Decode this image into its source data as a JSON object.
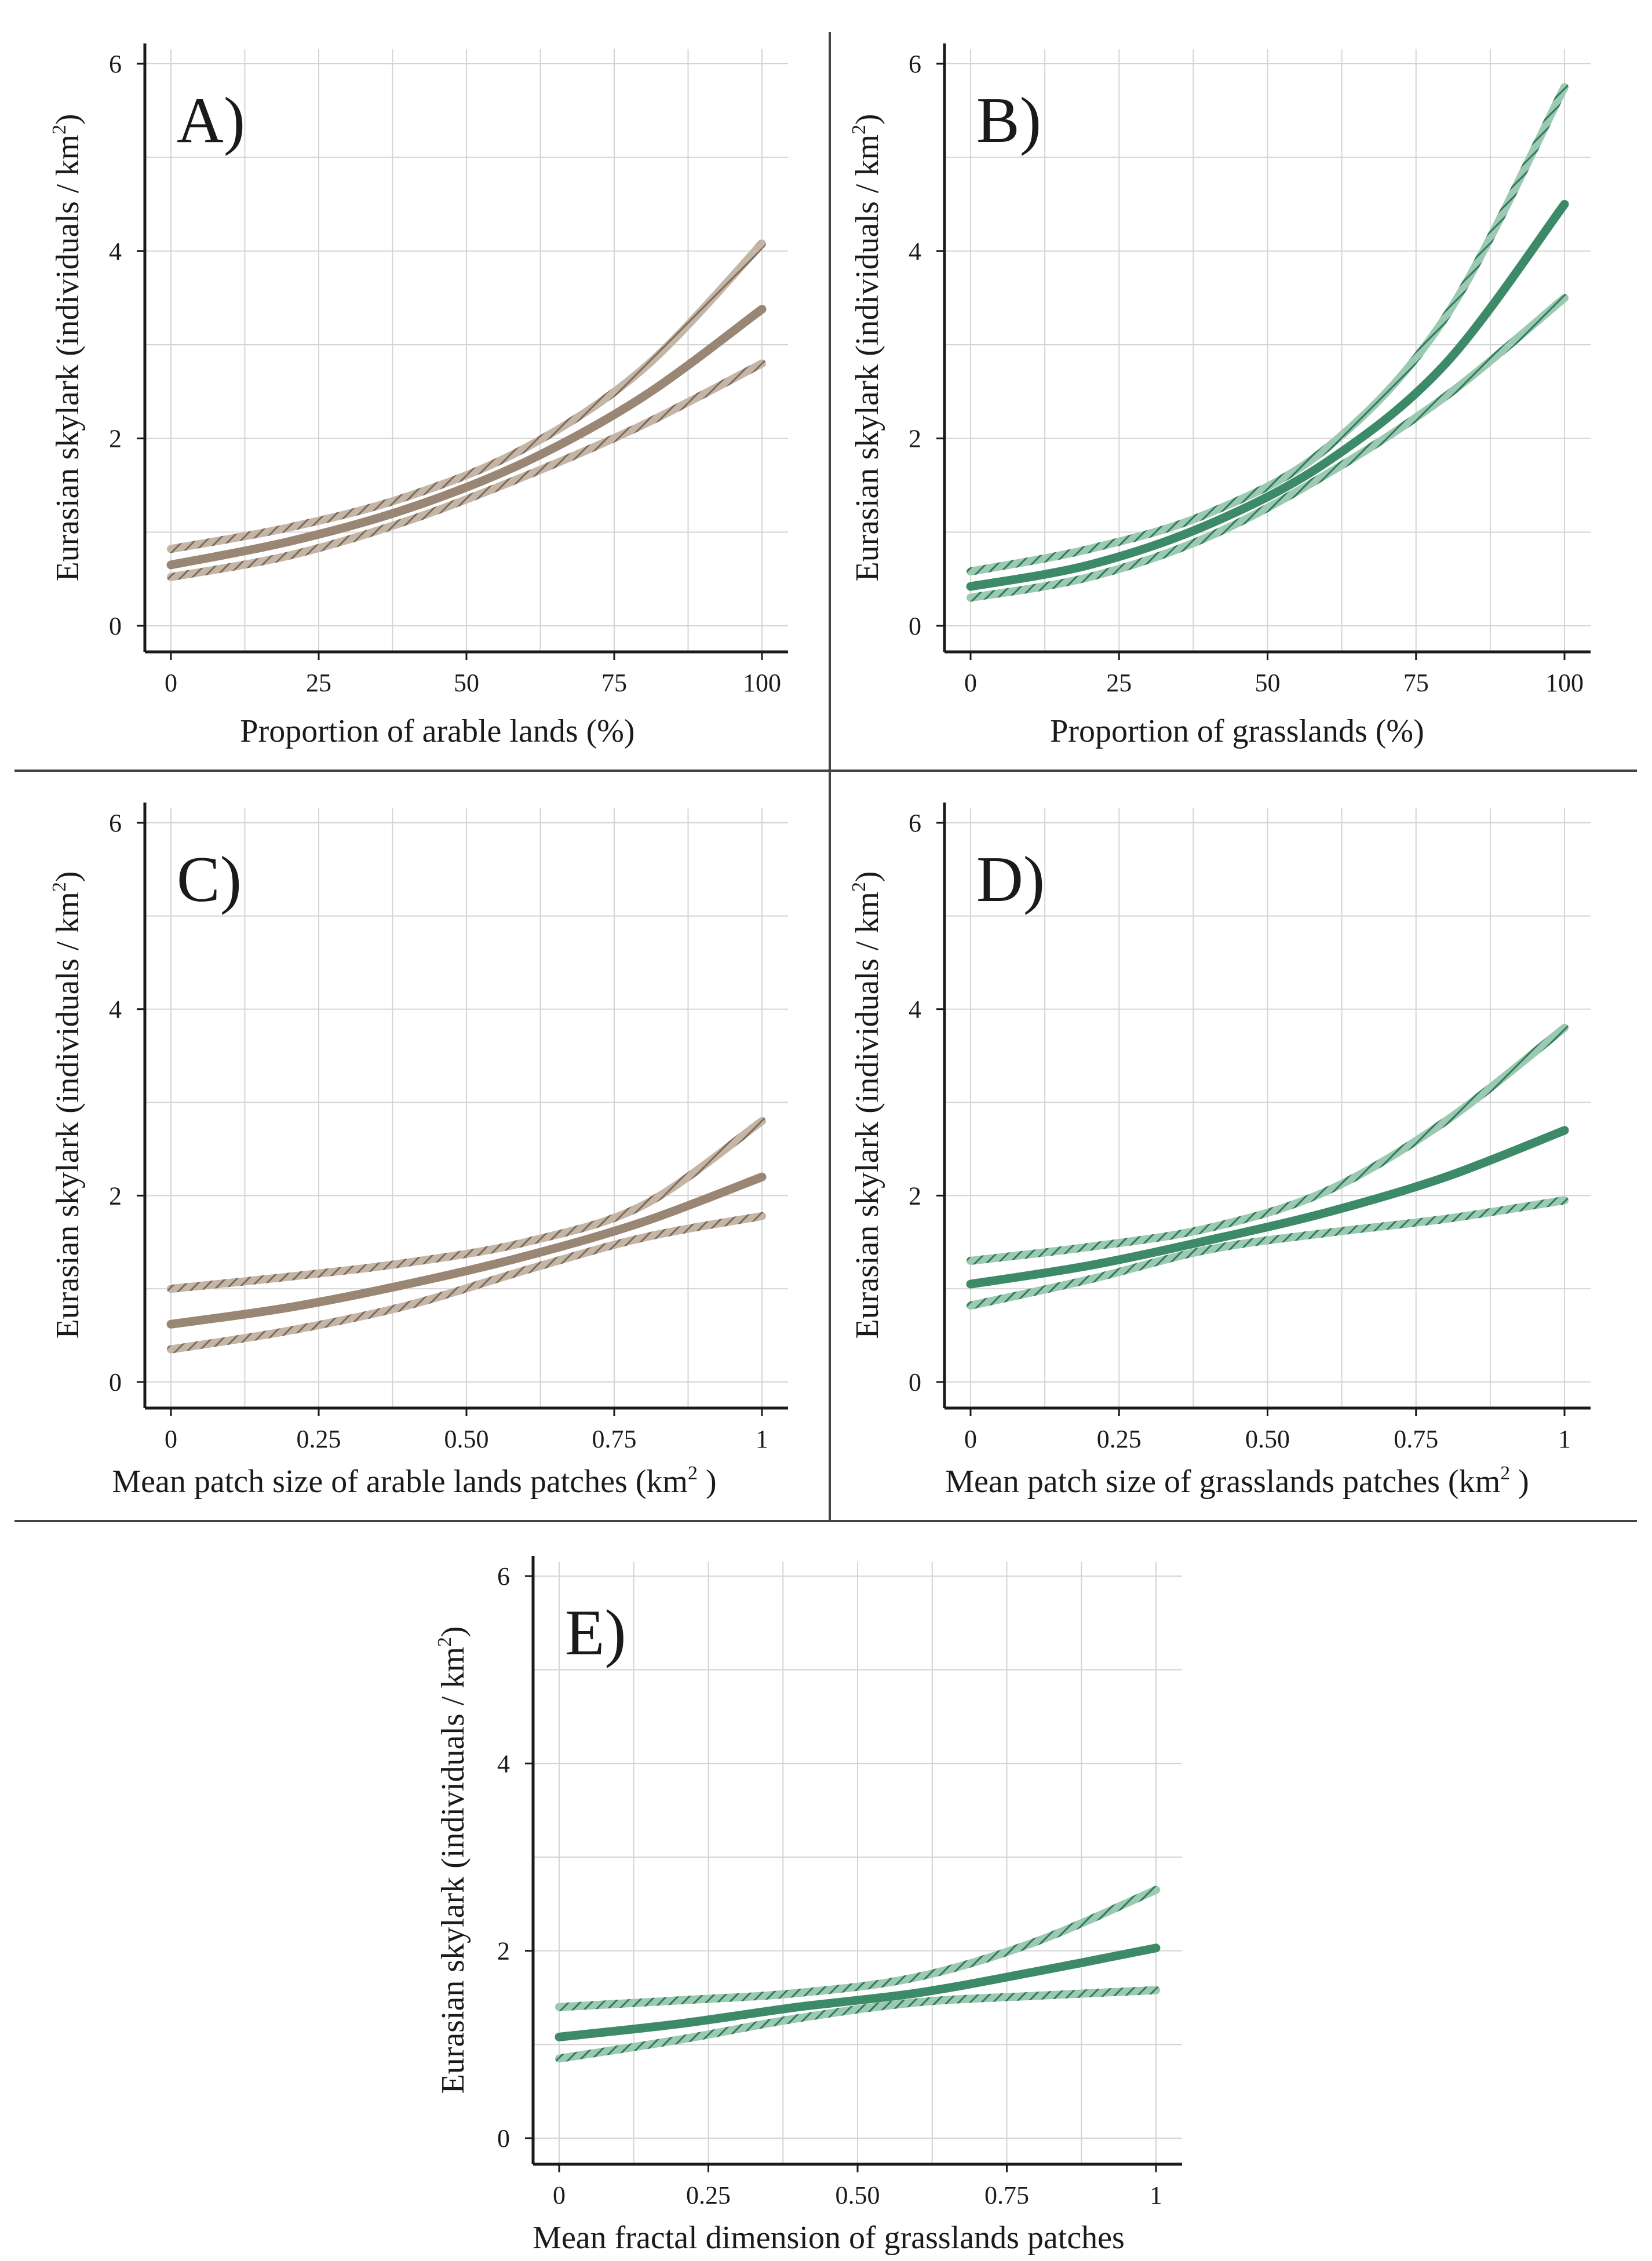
{
  "chart_data": [
    {
      "panel": "A)",
      "type": "line",
      "color": "#9a8674",
      "ylabel": "Eurasian skylark (individuals / km",
      "ylabel_sup": "2",
      "ylabel_end": ")",
      "xlabel": "Proportion of arable lands (%)",
      "xlabel_sup": "",
      "xlabel_end": "",
      "xlim": [
        0,
        100
      ],
      "ylim": [
        0,
        6
      ],
      "xticks": [
        0,
        25,
        50,
        75,
        100
      ],
      "xtick_labels": [
        "0",
        "25",
        "50",
        "75",
        "100"
      ],
      "yticks": [
        0,
        2,
        4,
        6
      ],
      "ytick_labels": [
        "0",
        "2",
        "4",
        "6"
      ],
      "x": [
        0,
        20,
        40,
        60,
        80,
        100
      ],
      "series": [
        {
          "name": "fit",
          "values": [
            0.65,
            0.9,
            1.25,
            1.75,
            2.45,
            3.38
          ]
        },
        {
          "name": "upper",
          "values": [
            0.82,
            1.05,
            1.38,
            1.9,
            2.75,
            4.08
          ]
        },
        {
          "name": "lower",
          "values": [
            0.52,
            0.75,
            1.12,
            1.6,
            2.15,
            2.8
          ]
        }
      ]
    },
    {
      "panel": "B)",
      "type": "line",
      "color": "#3d8a68",
      "ylabel": "Eurasian skylark (individuals / km",
      "ylabel_sup": "2",
      "ylabel_end": ")",
      "xlabel": "Proportion of grasslands (%)",
      "xlabel_sup": "",
      "xlabel_end": "",
      "xlim": [
        0,
        100
      ],
      "ylim": [
        0,
        6
      ],
      "xticks": [
        0,
        25,
        50,
        75,
        100
      ],
      "xtick_labels": [
        "0",
        "25",
        "50",
        "75",
        "100"
      ],
      "yticks": [
        0,
        2,
        4,
        6
      ],
      "ytick_labels": [
        "0",
        "2",
        "4",
        "6"
      ],
      "x": [
        0,
        20,
        40,
        60,
        80,
        100
      ],
      "series": [
        {
          "name": "fit",
          "values": [
            0.42,
            0.65,
            1.08,
            1.75,
            2.8,
            4.5
          ]
        },
        {
          "name": "upper",
          "values": [
            0.58,
            0.82,
            1.2,
            1.9,
            3.3,
            5.75
          ]
        },
        {
          "name": "lower",
          "values": [
            0.3,
            0.52,
            0.95,
            1.62,
            2.45,
            3.5
          ]
        }
      ]
    },
    {
      "panel": "C)",
      "type": "line",
      "color": "#9a8674",
      "ylabel": "Eurasian skylark (individuals / km",
      "ylabel_sup": "2",
      "ylabel_end": ")",
      "xlabel": "Mean patch size of arable lands patches (km",
      "xlabel_sup": "2",
      "xlabel_end": ")",
      "xlim": [
        0,
        1
      ],
      "ylim": [
        0,
        6
      ],
      "xticks": [
        0,
        0.25,
        0.5,
        0.75,
        1
      ],
      "xtick_labels": [
        "0",
        "0.25",
        "0.50",
        "0.75",
        "1"
      ],
      "yticks": [
        0,
        2,
        4,
        6
      ],
      "ytick_labels": [
        "0",
        "2",
        "4",
        "6"
      ],
      "x": [
        0,
        0.2,
        0.4,
        0.6,
        0.8,
        1.0
      ],
      "series": [
        {
          "name": "fit",
          "values": [
            0.62,
            0.8,
            1.05,
            1.35,
            1.72,
            2.2
          ]
        },
        {
          "name": "upper",
          "values": [
            1.0,
            1.13,
            1.28,
            1.5,
            1.9,
            2.8
          ]
        },
        {
          "name": "lower",
          "values": [
            0.35,
            0.55,
            0.82,
            1.2,
            1.55,
            1.78
          ]
        }
      ]
    },
    {
      "panel": "D)",
      "type": "line",
      "color": "#3d8a68",
      "ylabel": "Eurasian skylark (individuals / km",
      "ylabel_sup": "2",
      "ylabel_end": ")",
      "xlabel": "Mean patch size of grasslands patches (km",
      "xlabel_sup": "2",
      "xlabel_end": ")",
      "xlim": [
        0,
        1
      ],
      "ylim": [
        0,
        6
      ],
      "xticks": [
        0,
        0.25,
        0.5,
        0.75,
        1
      ],
      "xtick_labels": [
        "0",
        "0.25",
        "0.50",
        "0.75",
        "1"
      ],
      "yticks": [
        0,
        2,
        4,
        6
      ],
      "ytick_labels": [
        "0",
        "2",
        "4",
        "6"
      ],
      "x": [
        0,
        0.2,
        0.4,
        0.6,
        0.8,
        1.0
      ],
      "series": [
        {
          "name": "fit",
          "values": [
            1.05,
            1.25,
            1.52,
            1.82,
            2.2,
            2.7
          ]
        },
        {
          "name": "upper",
          "values": [
            1.3,
            1.45,
            1.65,
            2.05,
            2.8,
            3.8
          ]
        },
        {
          "name": "lower",
          "values": [
            0.82,
            1.1,
            1.42,
            1.6,
            1.75,
            1.95
          ]
        }
      ]
    },
    {
      "panel": "E)",
      "type": "line",
      "color": "#3d8a68",
      "ylabel": "Eurasian skylark (individuals / km",
      "ylabel_sup": "2",
      "ylabel_end": ")",
      "xlabel": "Mean fractal dimension of grasslands patches",
      "xlabel_sup": "",
      "xlabel_end": "",
      "xlim": [
        0,
        1
      ],
      "ylim": [
        0,
        6
      ],
      "xticks": [
        0,
        0.25,
        0.5,
        0.75,
        1
      ],
      "xtick_labels": [
        "0",
        "0.25",
        "0.50",
        "0.75",
        "1"
      ],
      "yticks": [
        0,
        2,
        4,
        6
      ],
      "ytick_labels": [
        "0",
        "2",
        "4",
        "6"
      ],
      "x": [
        0,
        0.2,
        0.4,
        0.6,
        0.8,
        1.0
      ],
      "series": [
        {
          "name": "fit",
          "values": [
            1.08,
            1.22,
            1.4,
            1.55,
            1.78,
            2.03
          ]
        },
        {
          "name": "upper",
          "values": [
            1.4,
            1.47,
            1.55,
            1.72,
            2.1,
            2.65
          ]
        },
        {
          "name": "lower",
          "values": [
            0.85,
            1.05,
            1.28,
            1.45,
            1.52,
            1.58
          ]
        }
      ]
    }
  ]
}
